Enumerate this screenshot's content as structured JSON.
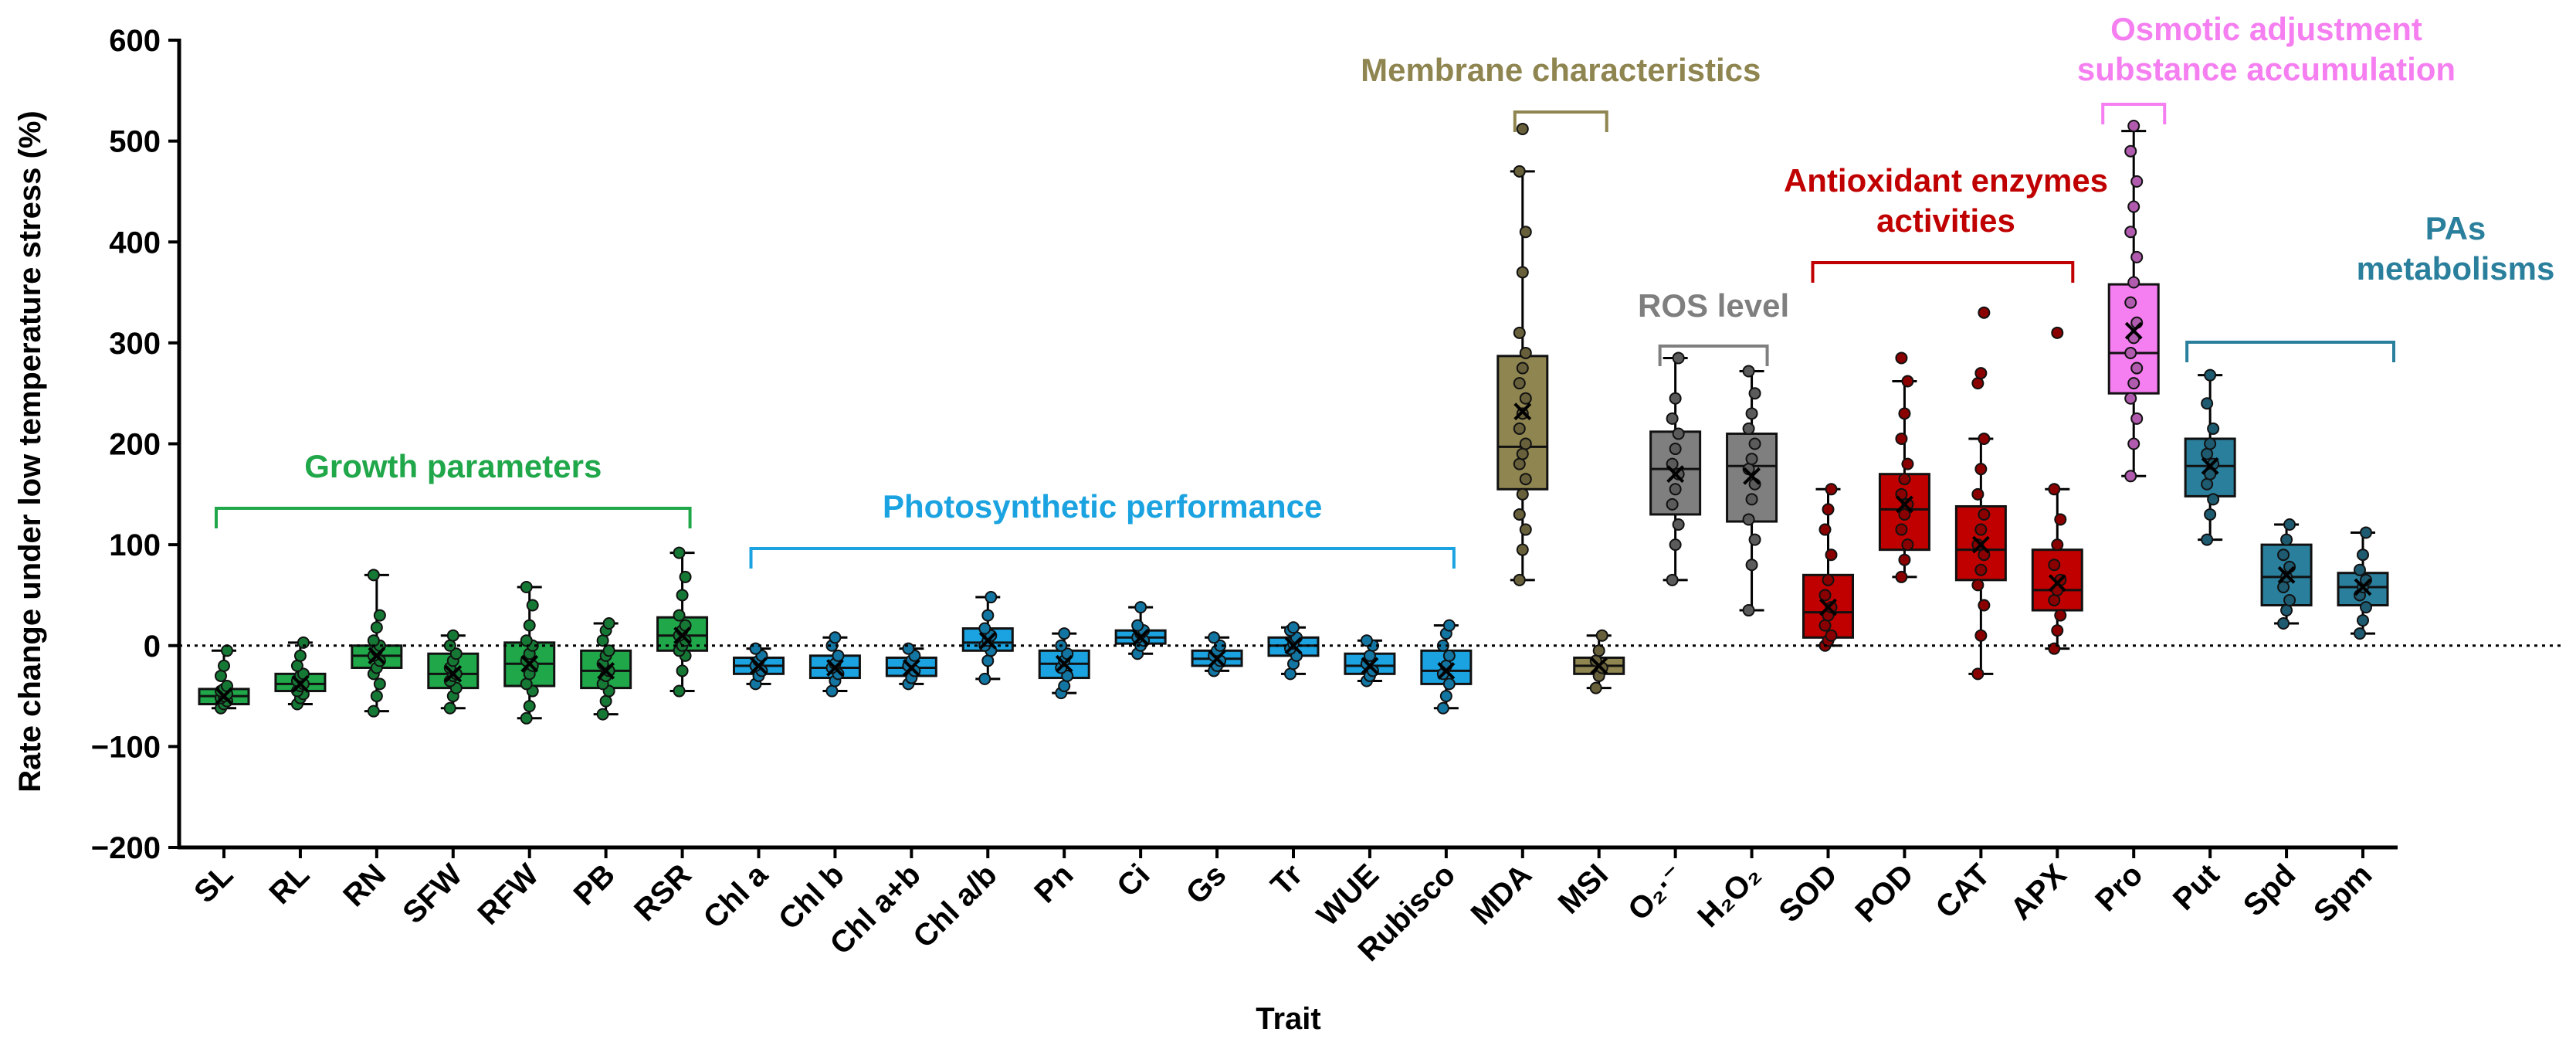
{
  "chart_data": {
    "type": "box",
    "ylabel": "Rate change under low temperature stress (%)",
    "xlabel": "Trait",
    "ylim": [
      -200,
      600
    ],
    "yticks": [
      -200,
      -100,
      0,
      100,
      200,
      300,
      400,
      500,
      600
    ],
    "ytick_labels": [
      "−200",
      "−100",
      "0",
      "100",
      "200",
      "300",
      "400",
      "500",
      "600"
    ],
    "reference_line": 0,
    "colors": {
      "growth": "#1fa74a",
      "photo": "#1aa3e0",
      "membrane": "#8f8550",
      "ros": "#7f7f7f",
      "antioxidant": "#c00000",
      "osmotic": "#f57ff0",
      "pas": "#2a7f9c"
    },
    "groups": [
      {
        "key": "growth",
        "label": "Growth parameters",
        "color": "#1fa74a",
        "from": 0,
        "to": 6,
        "lines": [
          "Growth parameters"
        ]
      },
      {
        "key": "photo",
        "label": "Photosynthetic performance",
        "color": "#1aa3e0",
        "from": 7,
        "to": 16,
        "lines": [
          "Photosynthetic performance"
        ]
      },
      {
        "key": "membrane",
        "label": "Membrane characteristics",
        "color": "#8f8550",
        "from": 17,
        "to": 18,
        "lines": [
          "Membrane characteristics"
        ]
      },
      {
        "key": "ros",
        "label": "ROS level",
        "color": "#7f7f7f",
        "from": 19,
        "to": 20,
        "lines": [
          "ROS level"
        ]
      },
      {
        "key": "antioxidant",
        "label": "Antioxidant enzymes activities",
        "color": "#c00000",
        "from": 21,
        "to": 24,
        "lines": [
          "Antioxidant enzymes",
          "activities"
        ]
      },
      {
        "key": "osmotic",
        "label": "Osmotic adjustment substance accumulation",
        "color": "#f57ff0",
        "from": 25,
        "to": 25,
        "lines": [
          "Osmotic adjustment",
          "substance accumulation"
        ]
      },
      {
        "key": "pas",
        "label": "PAs metabolisms",
        "color": "#2a7f9c",
        "from": 26,
        "to": 28,
        "lines": [
          "PAs",
          "metabolisms"
        ]
      }
    ],
    "categories": [
      {
        "label": "SL",
        "group": "growth",
        "min": -62,
        "q1": -58,
        "median": -50,
        "q3": -43,
        "max": -5,
        "mean": -50,
        "points": [
          -62,
          -58,
          -55,
          -52,
          -50,
          -48,
          -45,
          -43,
          -40,
          -30,
          -20,
          -5
        ]
      },
      {
        "label": "RL",
        "group": "growth",
        "min": -58,
        "q1": -45,
        "median": -38,
        "q3": -28,
        "max": 3,
        "mean": -38,
        "points": [
          -58,
          -52,
          -48,
          -45,
          -40,
          -38,
          -35,
          -30,
          -28,
          -20,
          -10,
          3
        ]
      },
      {
        "label": "RN",
        "group": "growth",
        "min": -65,
        "q1": -22,
        "median": -10,
        "q3": 0,
        "max": 70,
        "mean": -10,
        "points": [
          -65,
          -50,
          -38,
          -28,
          -22,
          -15,
          -10,
          -5,
          0,
          5,
          18,
          30,
          70
        ]
      },
      {
        "label": "SFW",
        "group": "growth",
        "min": -62,
        "q1": -42,
        "median": -28,
        "q3": -8,
        "max": 10,
        "mean": -28,
        "points": [
          -62,
          -50,
          -42,
          -35,
          -30,
          -28,
          -22,
          -15,
          -8,
          0,
          10
        ]
      },
      {
        "label": "RFW",
        "group": "growth",
        "min": -72,
        "q1": -40,
        "median": -18,
        "q3": 3,
        "max": 58,
        "mean": -18,
        "points": [
          -72,
          -60,
          -45,
          -38,
          -28,
          -20,
          -15,
          -8,
          0,
          5,
          20,
          40,
          58
        ]
      },
      {
        "label": "PB",
        "group": "growth",
        "min": -68,
        "q1": -42,
        "median": -25,
        "q3": -5,
        "max": 22,
        "mean": -25,
        "points": [
          -68,
          -55,
          -45,
          -38,
          -30,
          -25,
          -18,
          -10,
          -5,
          5,
          15,
          22
        ]
      },
      {
        "label": "RSR",
        "group": "growth",
        "min": -45,
        "q1": -5,
        "median": 10,
        "q3": 28,
        "max": 92,
        "mean": 10,
        "points": [
          -45,
          -25,
          -10,
          -5,
          0,
          5,
          10,
          15,
          20,
          30,
          50,
          68,
          92
        ]
      },
      {
        "label": "Chl a",
        "group": "photo",
        "min": -38,
        "q1": -28,
        "median": -20,
        "q3": -12,
        "max": -3,
        "mean": -20,
        "points": [
          -38,
          -30,
          -25,
          -20,
          -15,
          -10,
          -3
        ]
      },
      {
        "label": "Chl b",
        "group": "photo",
        "min": -45,
        "q1": -32,
        "median": -22,
        "q3": -10,
        "max": 8,
        "mean": -22,
        "points": [
          -45,
          -35,
          -28,
          -22,
          -18,
          -10,
          0,
          8
        ]
      },
      {
        "label": "Chl a+b",
        "group": "photo",
        "min": -38,
        "q1": -30,
        "median": -22,
        "q3": -12,
        "max": -3,
        "mean": -22,
        "points": [
          -38,
          -32,
          -25,
          -20,
          -15,
          -10,
          -3
        ]
      },
      {
        "label": "Chl a/b",
        "group": "photo",
        "min": -33,
        "q1": -5,
        "median": 3,
        "q3": 17,
        "max": 48,
        "mean": 5,
        "points": [
          -33,
          -15,
          -5,
          0,
          5,
          10,
          17,
          30,
          48
        ]
      },
      {
        "label": "Pn",
        "group": "photo",
        "min": -47,
        "q1": -32,
        "median": -18,
        "q3": -5,
        "max": 12,
        "mean": -18,
        "points": [
          -47,
          -40,
          -30,
          -22,
          -15,
          -8,
          0,
          12
        ]
      },
      {
        "label": "Ci",
        "group": "photo",
        "min": -8,
        "q1": 2,
        "median": 8,
        "q3": 15,
        "max": 38,
        "mean": 8,
        "points": [
          -8,
          0,
          5,
          8,
          12,
          15,
          20,
          38
        ]
      },
      {
        "label": "Gs",
        "group": "photo",
        "min": -25,
        "q1": -20,
        "median": -13,
        "q3": -5,
        "max": 8,
        "mean": -13,
        "points": [
          -25,
          -20,
          -15,
          -10,
          -5,
          0,
          8
        ]
      },
      {
        "label": "Tr",
        "group": "photo",
        "min": -28,
        "q1": -10,
        "median": 0,
        "q3": 8,
        "max": 18,
        "mean": 0,
        "points": [
          -28,
          -18,
          -10,
          -3,
          2,
          8,
          15,
          18
        ]
      },
      {
        "label": "WUE",
        "group": "photo",
        "min": -35,
        "q1": -28,
        "median": -20,
        "q3": -8,
        "max": 5,
        "mean": -20,
        "points": [
          -35,
          -30,
          -25,
          -18,
          -10,
          0,
          5
        ]
      },
      {
        "label": "Rubisco",
        "group": "photo",
        "min": -62,
        "q1": -38,
        "median": -25,
        "q3": -5,
        "max": 20,
        "mean": -25,
        "points": [
          -62,
          -50,
          -38,
          -28,
          -20,
          -10,
          0,
          12,
          20
        ]
      },
      {
        "label": "MDA",
        "group": "membrane",
        "min": 65,
        "q1": 155,
        "median": 197,
        "q3": 287,
        "max": 470,
        "mean": 232,
        "points": [
          65,
          95,
          115,
          130,
          150,
          165,
          180,
          190,
          200,
          215,
          230,
          245,
          260,
          275,
          290,
          310,
          370,
          410,
          470,
          512
        ]
      },
      {
        "label": "MSI",
        "group": "membrane",
        "min": -42,
        "q1": -28,
        "median": -20,
        "q3": -12,
        "max": 10,
        "mean": -20,
        "points": [
          -42,
          -30,
          -22,
          -15,
          -5,
          10
        ]
      },
      {
        "label": "O₂·⁻",
        "group": "ros",
        "min": 65,
        "q1": 130,
        "median": 175,
        "q3": 212,
        "max": 285,
        "mean": 170,
        "points": [
          65,
          100,
          120,
          140,
          155,
          170,
          180,
          195,
          210,
          225,
          245,
          285
        ]
      },
      {
        "label": "H₂O₂",
        "group": "ros",
        "min": 35,
        "q1": 123,
        "median": 178,
        "q3": 210,
        "max": 272,
        "mean": 168,
        "points": [
          35,
          80,
          105,
          125,
          145,
          160,
          175,
          185,
          200,
          215,
          230,
          250,
          272
        ]
      },
      {
        "label": "SOD",
        "group": "antioxidant",
        "min": 0,
        "q1": 8,
        "median": 33,
        "q3": 70,
        "max": 155,
        "mean": 38,
        "points": [
          0,
          5,
          10,
          20,
          30,
          38,
          50,
          65,
          90,
          115,
          135,
          155
        ]
      },
      {
        "label": "POD",
        "group": "antioxidant",
        "min": 68,
        "q1": 95,
        "median": 135,
        "q3": 170,
        "max": 262,
        "mean": 140,
        "points": [
          68,
          85,
          100,
          115,
          130,
          140,
          150,
          165,
          180,
          205,
          230,
          262,
          285
        ]
      },
      {
        "label": "CAT",
        "group": "antioxidant",
        "min": -28,
        "q1": 65,
        "median": 95,
        "q3": 138,
        "max": 205,
        "mean": 100,
        "points": [
          -28,
          10,
          40,
          60,
          75,
          90,
          100,
          115,
          130,
          150,
          175,
          205,
          260,
          270,
          330
        ]
      },
      {
        "label": "APX",
        "group": "antioxidant",
        "min": -3,
        "q1": 35,
        "median": 55,
        "q3": 95,
        "max": 155,
        "mean": 62,
        "points": [
          -3,
          15,
          30,
          45,
          55,
          65,
          80,
          100,
          125,
          155,
          310
        ]
      },
      {
        "label": "Pro",
        "group": "osmotic",
        "min": 168,
        "q1": 250,
        "median": 290,
        "q3": 358,
        "max": 510,
        "mean": 312,
        "points": [
          168,
          200,
          225,
          245,
          260,
          275,
          290,
          305,
          320,
          340,
          360,
          385,
          410,
          435,
          460,
          490,
          515
        ]
      },
      {
        "label": "Put",
        "group": "pas",
        "min": 105,
        "q1": 148,
        "median": 178,
        "q3": 205,
        "max": 268,
        "mean": 178,
        "points": [
          105,
          130,
          145,
          160,
          170,
          180,
          190,
          200,
          215,
          240,
          268
        ]
      },
      {
        "label": "Spd",
        "group": "pas",
        "min": 22,
        "q1": 40,
        "median": 68,
        "q3": 100,
        "max": 120,
        "mean": 70,
        "points": [
          22,
          35,
          45,
          58,
          68,
          78,
          90,
          105,
          120
        ]
      },
      {
        "label": "Spm",
        "group": "pas",
        "min": 12,
        "q1": 40,
        "median": 58,
        "q3": 72,
        "max": 112,
        "mean": 58,
        "points": [
          12,
          25,
          38,
          50,
          58,
          65,
          75,
          90,
          112
        ]
      }
    ]
  }
}
